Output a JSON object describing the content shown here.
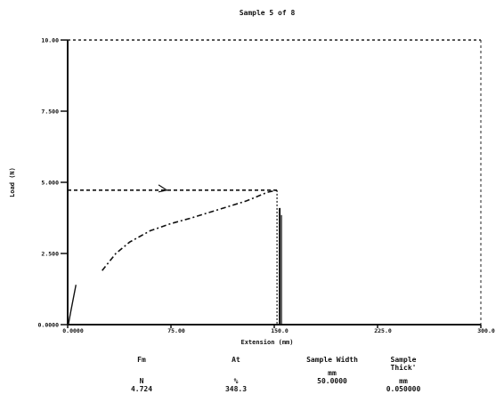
{
  "chart_data": {
    "type": "line",
    "title": "Sample 5 of 8",
    "xlabel": "Extension (mm)",
    "ylabel": "Load (N)",
    "xlim": [
      0,
      300
    ],
    "ylim": [
      0,
      10
    ],
    "x_ticks": [
      0,
      75,
      150,
      225,
      300
    ],
    "x_tick_labels": [
      "0.0000",
      "75.00",
      "150.0",
      "225.0",
      "300.0"
    ],
    "y_ticks": [
      0,
      2.5,
      5,
      7.5,
      10
    ],
    "y_tick_labels": [
      "0.0000",
      "2.500",
      "5.000",
      "7.500",
      "10.00"
    ],
    "grid": false,
    "series": [
      {
        "points": [
          {
            "x": 0.5,
            "y": 0.0
          },
          {
            "x": 2.0,
            "y": 0.4
          },
          {
            "x": 4.0,
            "y": 0.9
          },
          {
            "x": 6.0,
            "y": 1.4
          },
          {
            "x": 25,
            "y": 1.9
          },
          {
            "x": 35,
            "y": 2.5
          },
          {
            "x": 45,
            "y": 2.9
          },
          {
            "x": 60,
            "y": 3.3
          },
          {
            "x": 75,
            "y": 3.55
          },
          {
            "x": 90,
            "y": 3.75
          },
          {
            "x": 110,
            "y": 4.05
          },
          {
            "x": 130,
            "y": 4.35
          },
          {
            "x": 145,
            "y": 4.65
          },
          {
            "x": 152,
            "y": 4.724
          }
        ]
      }
    ],
    "annotations": {
      "max_load": 4.724,
      "max_load_extension": 152
    }
  },
  "results": [
    {
      "header": "Fm",
      "unit": "N",
      "value": "4.724"
    },
    {
      "header": "At",
      "unit": "%",
      "value": "348.3"
    },
    {
      "header": "Sample Width",
      "unit": "mm",
      "value": "50.0000"
    },
    {
      "header": "Sample Thick'",
      "unit": "mm",
      "value": "0.050000"
    }
  ]
}
